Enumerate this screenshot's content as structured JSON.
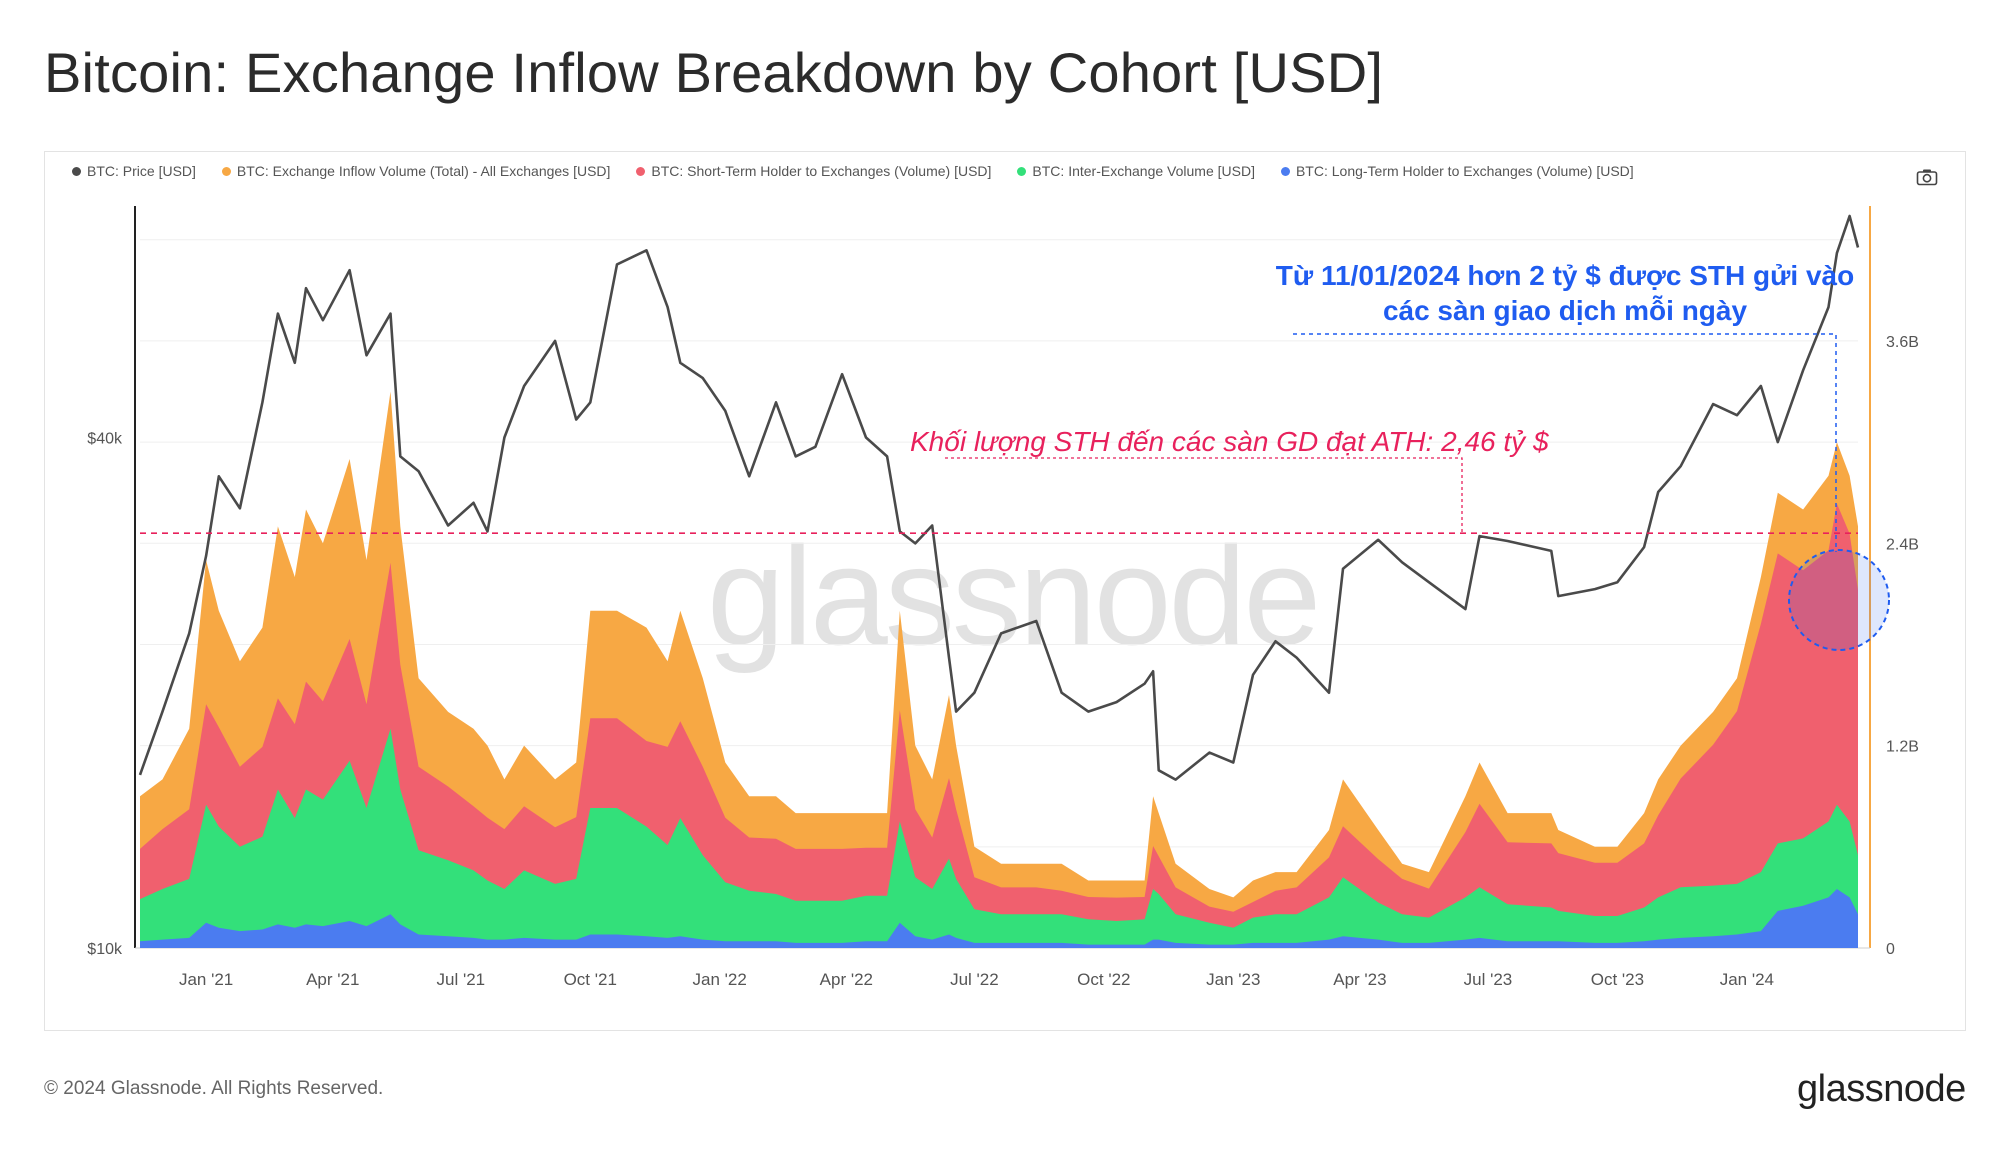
{
  "page": {
    "title": "Bitcoin: Exchange Inflow Breakdown by Cohort [USD]",
    "footer_copyright": "© 2024 Glassnode. All Rights Reserved.",
    "footer_logo": "glassnode",
    "watermark": "glassnode"
  },
  "colors": {
    "price": "#4a4a4a",
    "total": "#f7a844",
    "sth": "#f0606e",
    "inter": "#33e07a",
    "lth": "#4b7cf0",
    "sth_annotation": "#e8215c",
    "blue_annotation": "#1f5cf0",
    "axis_right": "#f7a844"
  },
  "chart_data": {
    "type": "area",
    "title": "Bitcoin: Exchange Inflow Breakdown by Cohort [USD]",
    "legend": [
      {
        "key": "price",
        "label": "BTC: Price [USD]"
      },
      {
        "key": "total",
        "label": "BTC: Exchange Inflow Volume (Total) - All Exchanges [USD]"
      },
      {
        "key": "sth",
        "label": "BTC: Short-Term Holder to Exchanges (Volume) [USD]"
      },
      {
        "key": "inter",
        "label": "BTC: Inter-Exchange Volume [USD]"
      },
      {
        "key": "lth",
        "label": "BTC: Long-Term Holder to Exchanges (Volume) [USD]"
      }
    ],
    "x_tick_labels": [
      "Jan '21",
      "Apr '21",
      "Jul '21",
      "Oct '21",
      "Jan '22",
      "Apr '22",
      "Jul '22",
      "Oct '22",
      "Jan '23",
      "Apr '23",
      "Jul '23",
      "Oct '23",
      "Jan '24"
    ],
    "x_range": [
      "2020-11-15",
      "2024-03-20"
    ],
    "y_left": {
      "scale": "log",
      "range": [
        10000,
        75000
      ],
      "tick_labels": [
        "$10k",
        "$40k"
      ],
      "tick_values": [
        10000,
        40000
      ]
    },
    "y_right": {
      "scale": "linear",
      "range_billion": [
        0,
        4.4
      ],
      "tick_labels": [
        "0",
        "1.2B",
        "2.4B",
        "3.6B"
      ],
      "tick_values_billion": [
        0,
        1.2,
        2.4,
        3.6
      ]
    },
    "dates": [
      "2020-11-15",
      "2020-12-01",
      "2020-12-20",
      "2021-01-01",
      "2021-01-10",
      "2021-01-25",
      "2021-02-10",
      "2021-02-21",
      "2021-03-05",
      "2021-03-13",
      "2021-03-25",
      "2021-04-13",
      "2021-04-25",
      "2021-05-12",
      "2021-05-19",
      "2021-06-01",
      "2021-06-22",
      "2021-07-10",
      "2021-07-20",
      "2021-08-01",
      "2021-08-15",
      "2021-09-06",
      "2021-09-21",
      "2021-10-01",
      "2021-10-20",
      "2021-11-10",
      "2021-11-25",
      "2021-12-04",
      "2021-12-20",
      "2022-01-05",
      "2022-01-22",
      "2022-02-10",
      "2022-02-24",
      "2022-03-10",
      "2022-03-29",
      "2022-04-15",
      "2022-04-30",
      "2022-05-09",
      "2022-05-20",
      "2022-06-01",
      "2022-06-13",
      "2022-06-18",
      "2022-07-01",
      "2022-07-20",
      "2022-08-14",
      "2022-09-01",
      "2022-09-20",
      "2022-10-10",
      "2022-10-30",
      "2022-11-05",
      "2022-11-09",
      "2022-11-21",
      "2022-12-15",
      "2023-01-01",
      "2023-01-15",
      "2023-01-31",
      "2023-02-15",
      "2023-03-10",
      "2023-03-20",
      "2023-04-14",
      "2023-05-01",
      "2023-05-20",
      "2023-06-15",
      "2023-06-25",
      "2023-07-15",
      "2023-08-15",
      "2023-08-20",
      "2023-09-15",
      "2023-10-01",
      "2023-10-20",
      "2023-10-30",
      "2023-11-15",
      "2023-12-08",
      "2023-12-25",
      "2024-01-11",
      "2024-01-23",
      "2024-02-10",
      "2024-02-28",
      "2024-03-05",
      "2024-03-14",
      "2024-03-20"
    ],
    "price_usd": [
      16000,
      19000,
      23500,
      29000,
      36000,
      33000,
      44000,
      56000,
      49000,
      60000,
      55000,
      63000,
      50000,
      56000,
      38000,
      36500,
      31500,
      33500,
      31000,
      40000,
      46000,
      52000,
      42000,
      44000,
      64000,
      66500,
      57000,
      49000,
      47000,
      43000,
      36000,
      44000,
      38000,
      39000,
      47500,
      40000,
      38000,
      31000,
      30000,
      31500,
      22000,
      19000,
      20000,
      23500,
      24300,
      20000,
      19000,
      19500,
      20500,
      21200,
      16200,
      15800,
      17000,
      16550,
      21000,
      23000,
      22000,
      20000,
      28000,
      30300,
      28500,
      27000,
      25100,
      30600,
      30200,
      29400,
      26000,
      26500,
      27000,
      29700,
      34500,
      37000,
      43800,
      42500,
      46000,
      39500,
      48000,
      57000,
      66000,
      73000,
      67000
    ],
    "series_billion": {
      "total": [
        0.9,
        1.0,
        1.3,
        2.3,
        2.0,
        1.7,
        1.9,
        2.5,
        2.2,
        2.6,
        2.4,
        2.9,
        2.3,
        3.3,
        2.5,
        1.6,
        1.4,
        1.3,
        1.2,
        1.0,
        1.2,
        1.0,
        1.1,
        2.0,
        2.0,
        1.9,
        1.7,
        2.0,
        1.6,
        1.1,
        0.9,
        0.9,
        0.8,
        0.8,
        0.8,
        0.8,
        0.8,
        2.0,
        1.2,
        1.0,
        1.5,
        1.2,
        0.6,
        0.5,
        0.5,
        0.5,
        0.4,
        0.4,
        0.4,
        0.9,
        0.8,
        0.5,
        0.35,
        0.3,
        0.4,
        0.45,
        0.45,
        0.7,
        1.0,
        0.7,
        0.5,
        0.45,
        0.9,
        1.1,
        0.8,
        0.8,
        0.7,
        0.6,
        0.6,
        0.8,
        1.0,
        1.2,
        1.4,
        1.6,
        2.2,
        2.7,
        2.6,
        2.8,
        3.0,
        2.8,
        2.5
      ],
      "sth": [
        0.5,
        0.6,
        0.7,
        1.2,
        1.1,
        0.9,
        1.0,
        1.2,
        1.1,
        1.3,
        1.2,
        1.5,
        1.2,
        1.9,
        1.4,
        0.9,
        0.8,
        0.7,
        0.65,
        0.6,
        0.7,
        0.6,
        0.65,
        1.1,
        1.1,
        1.0,
        1.0,
        1.1,
        0.9,
        0.65,
        0.55,
        0.55,
        0.5,
        0.5,
        0.5,
        0.5,
        0.5,
        1.2,
        0.7,
        0.55,
        0.85,
        0.7,
        0.35,
        0.3,
        0.3,
        0.28,
        0.25,
        0.25,
        0.25,
        0.5,
        0.45,
        0.3,
        0.2,
        0.18,
        0.22,
        0.28,
        0.3,
        0.45,
        0.6,
        0.45,
        0.35,
        0.3,
        0.6,
        0.75,
        0.55,
        0.55,
        0.5,
        0.45,
        0.45,
        0.55,
        0.7,
        0.9,
        1.1,
        1.3,
        1.8,
        2.2,
        2.1,
        2.2,
        2.46,
        2.3,
        2.0
      ],
      "inter": [
        0.25,
        0.3,
        0.35,
        0.7,
        0.6,
        0.5,
        0.55,
        0.8,
        0.65,
        0.8,
        0.75,
        0.95,
        0.7,
        1.1,
        0.8,
        0.5,
        0.45,
        0.4,
        0.35,
        0.3,
        0.4,
        0.33,
        0.36,
        0.75,
        0.75,
        0.65,
        0.55,
        0.7,
        0.5,
        0.35,
        0.3,
        0.28,
        0.25,
        0.25,
        0.25,
        0.27,
        0.27,
        0.6,
        0.35,
        0.3,
        0.45,
        0.35,
        0.2,
        0.17,
        0.17,
        0.17,
        0.15,
        0.14,
        0.15,
        0.3,
        0.27,
        0.17,
        0.13,
        0.1,
        0.15,
        0.17,
        0.17,
        0.25,
        0.35,
        0.22,
        0.17,
        0.15,
        0.25,
        0.3,
        0.22,
        0.2,
        0.18,
        0.16,
        0.16,
        0.2,
        0.25,
        0.3,
        0.3,
        0.3,
        0.35,
        0.4,
        0.4,
        0.45,
        0.5,
        0.45,
        0.35
      ],
      "lth": [
        0.04,
        0.05,
        0.06,
        0.15,
        0.12,
        0.1,
        0.11,
        0.14,
        0.12,
        0.14,
        0.13,
        0.16,
        0.13,
        0.2,
        0.14,
        0.08,
        0.07,
        0.06,
        0.05,
        0.05,
        0.06,
        0.05,
        0.05,
        0.08,
        0.08,
        0.07,
        0.06,
        0.07,
        0.05,
        0.04,
        0.04,
        0.04,
        0.03,
        0.03,
        0.03,
        0.04,
        0.04,
        0.15,
        0.07,
        0.05,
        0.08,
        0.06,
        0.03,
        0.03,
        0.03,
        0.03,
        0.02,
        0.02,
        0.02,
        0.05,
        0.05,
        0.03,
        0.02,
        0.02,
        0.03,
        0.03,
        0.03,
        0.05,
        0.07,
        0.05,
        0.03,
        0.03,
        0.05,
        0.06,
        0.04,
        0.04,
        0.04,
        0.03,
        0.03,
        0.04,
        0.05,
        0.06,
        0.07,
        0.08,
        0.1,
        0.22,
        0.25,
        0.3,
        0.35,
        0.3,
        0.2
      ]
    },
    "annotations": {
      "sth_ath_text": "Khối lượng STH đến các sàn GD đạt ATH: 2,46 tỷ $",
      "sth_ath_value_billion": 2.46,
      "blue_text_line1": "Từ 11/01/2024 hơn 2 tỷ $ được STH gửi vào",
      "blue_text_line2": "các sàn giao dịch mỗi ngày",
      "blue_start_date": "2024-01-11"
    }
  }
}
